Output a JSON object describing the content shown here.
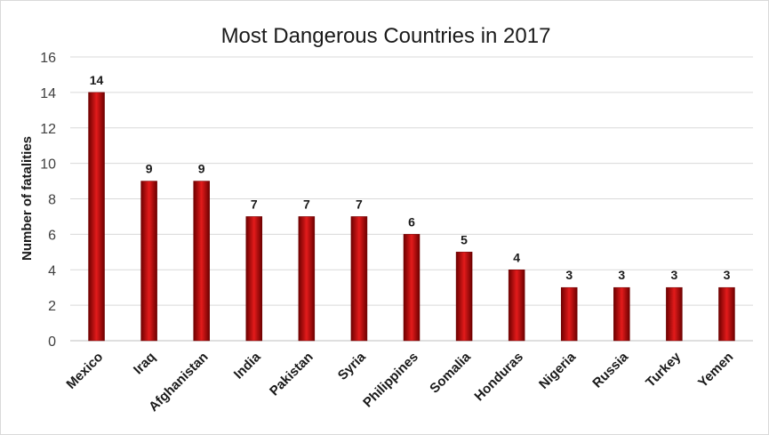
{
  "chart_data": {
    "type": "bar",
    "title": "Most Dangerous Countries in 2017",
    "ylabel": "Number of fatalities",
    "xlabel": "",
    "categories": [
      "Mexico",
      "Iraq",
      "Afghanistan",
      "India",
      "Pakistan",
      "Syria",
      "Philippines",
      "Somalia",
      "Honduras",
      "Nigeria",
      "Russia",
      "Turkey",
      "Yemen"
    ],
    "values": [
      14,
      9,
      9,
      7,
      7,
      7,
      6,
      5,
      4,
      3,
      3,
      3,
      3
    ],
    "ylim": [
      0,
      16
    ],
    "yticks": [
      "0",
      "2",
      "4",
      "6",
      "8",
      "10",
      "12",
      "14",
      "16"
    ],
    "grid": true,
    "legend": "none",
    "bar_color_light": "#e31b1b",
    "bar_color_dark": "#6e0000"
  }
}
